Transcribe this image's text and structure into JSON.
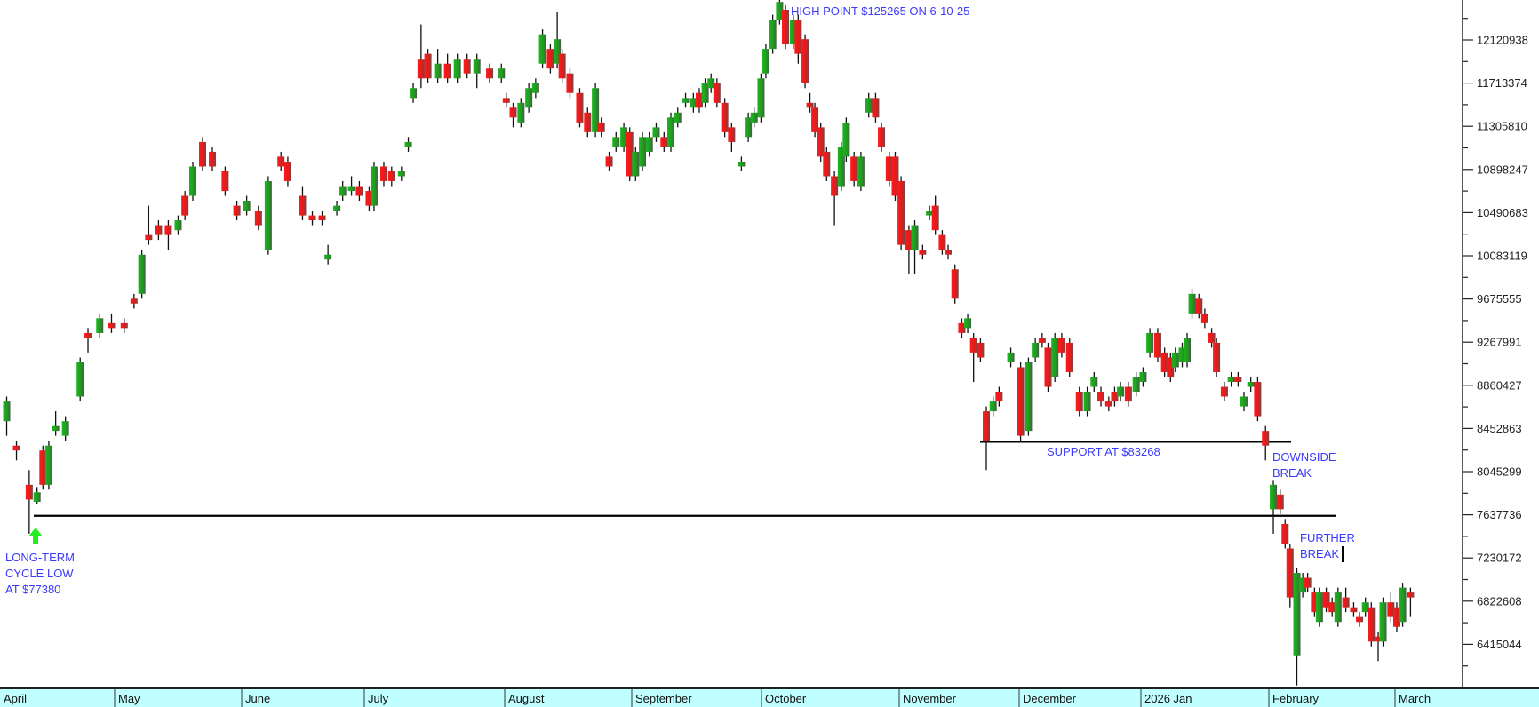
{
  "chart_data": {
    "type": "candlestick",
    "title": "",
    "xlabel": "",
    "ylabel": "",
    "grid": false,
    "x_tick_labels": [
      "April",
      "May",
      "June",
      "July",
      "August",
      "September",
      "October",
      "November",
      "December",
      "2026 Jan",
      "February",
      "March"
    ],
    "y_tick_labels": [
      "12120938",
      "11713374",
      "11305810",
      "10898247",
      "10490683",
      "10083119",
      "9675555",
      "9267991",
      "8860427",
      "8452863",
      "8045299",
      "7637736",
      "7230172",
      "6822608",
      "6415044"
    ],
    "ylim": [
      5900000,
      12560000
    ],
    "colors": {
      "up": "#1faa1f",
      "down": "#ee1c1c",
      "annotation": "#3a3aff",
      "axis_band": "#c0ffff"
    },
    "candle_fields": [
      "open",
      "high",
      "low",
      "close"
    ],
    "candles": [
      [
        8522000,
        8754000,
        8384000,
        8707000
      ],
      [
        8291000,
        8337000,
        8152000,
        8245000
      ],
      [
        7921000,
        8060000,
        7459000,
        7782000
      ],
      [
        7760000,
        7900000,
        7738000,
        7850000
      ],
      [
        8245000,
        8291000,
        7875000,
        7921000
      ],
      [
        7921000,
        8337000,
        7875000,
        8291000
      ],
      [
        8430000,
        8615000,
        8384000,
        8476000
      ],
      [
        8384000,
        8569000,
        8337000,
        8522000
      ],
      [
        8754000,
        9123000,
        8707000,
        9077000
      ],
      [
        9354000,
        9401000,
        9170000,
        9308000
      ],
      [
        9354000,
        9539000,
        9308000,
        9493000
      ],
      [
        9447000,
        9539000,
        9354000,
        9401000
      ],
      [
        9447000,
        9493000,
        9354000,
        9401000
      ],
      [
        9678000,
        9724000,
        9585000,
        9632000
      ],
      [
        9724000,
        10140000,
        9678000,
        10094000
      ],
      [
        10279000,
        10556000,
        10187000,
        10233000
      ],
      [
        10372000,
        10418000,
        10233000,
        10279000
      ],
      [
        10372000,
        10418000,
        10140000,
        10279000
      ],
      [
        10325000,
        10464000,
        10279000,
        10418000
      ],
      [
        10649000,
        10695000,
        10418000,
        10464000
      ],
      [
        10649000,
        10972000,
        10603000,
        10926000
      ],
      [
        11157000,
        11204000,
        10880000,
        10926000
      ],
      [
        11065000,
        11111000,
        10880000,
        10926000
      ],
      [
        10880000,
        10926000,
        10649000,
        10695000
      ],
      [
        10556000,
        10603000,
        10418000,
        10464000
      ],
      [
        10510000,
        10649000,
        10464000,
        10603000
      ],
      [
        10510000,
        10556000,
        10325000,
        10372000
      ],
      [
        10140000,
        10834000,
        10094000,
        10788000
      ],
      [
        11019000,
        11065000,
        10880000,
        10926000
      ],
      [
        10972000,
        11019000,
        10741000,
        10788000
      ],
      [
        10649000,
        10741000,
        10418000,
        10464000
      ],
      [
        10464000,
        10510000,
        10372000,
        10418000
      ],
      [
        10464000,
        10510000,
        10372000,
        10418000
      ],
      [
        10048000,
        10187000,
        10002000,
        10094000
      ],
      [
        10510000,
        10603000,
        10464000,
        10556000
      ],
      [
        10649000,
        10788000,
        10603000,
        10741000
      ],
      [
        10695000,
        10834000,
        10649000,
        10741000
      ],
      [
        10741000,
        10788000,
        10603000,
        10649000
      ],
      [
        10695000,
        10741000,
        10510000,
        10556000
      ],
      [
        10556000,
        10972000,
        10510000,
        10926000
      ],
      [
        10926000,
        10972000,
        10741000,
        10788000
      ],
      [
        10880000,
        10926000,
        10741000,
        10788000
      ],
      [
        10834000,
        10926000,
        10788000,
        10880000
      ],
      [
        11111000,
        11204000,
        11065000,
        11157000
      ],
      [
        11573000,
        11712000,
        11527000,
        11666000
      ],
      [
        11943000,
        12267000,
        11666000,
        11758000
      ],
      [
        11990000,
        12036000,
        11712000,
        11758000
      ],
      [
        11758000,
        12036000,
        11712000,
        11897000
      ],
      [
        11897000,
        11990000,
        11712000,
        11758000
      ],
      [
        11758000,
        11990000,
        11712000,
        11943000
      ],
      [
        11943000,
        11990000,
        11758000,
        11805000
      ],
      [
        11805000,
        11990000,
        11666000,
        11943000
      ],
      [
        11851000,
        11897000,
        11712000,
        11758000
      ],
      [
        11758000,
        11897000,
        11712000,
        11851000
      ],
      [
        11573000,
        11620000,
        11481000,
        11527000
      ],
      [
        11481000,
        11527000,
        11296000,
        11389000
      ],
      [
        11342000,
        11573000,
        11296000,
        11527000
      ],
      [
        11481000,
        11712000,
        11435000,
        11666000
      ],
      [
        11620000,
        11758000,
        11573000,
        11712000
      ],
      [
        11897000,
        12221000,
        11851000,
        12174000
      ],
      [
        12036000,
        12082000,
        11805000,
        11851000
      ],
      [
        11897000,
        12387000,
        11851000,
        12128000
      ],
      [
        11990000,
        12036000,
        11712000,
        11758000
      ],
      [
        11805000,
        11851000,
        11573000,
        11620000
      ],
      [
        11620000,
        11666000,
        11296000,
        11342000
      ],
      [
        11435000,
        11481000,
        11204000,
        11250000
      ],
      [
        11250000,
        11712000,
        11204000,
        11666000
      ],
      [
        11342000,
        11389000,
        11204000,
        11250000
      ],
      [
        11019000,
        11065000,
        10880000,
        10926000
      ],
      [
        11111000,
        11250000,
        11065000,
        11204000
      ],
      [
        11111000,
        11342000,
        11065000,
        11296000
      ],
      [
        11250000,
        11296000,
        10788000,
        10834000
      ],
      [
        10834000,
        11111000,
        10788000,
        11065000
      ],
      [
        10926000,
        11250000,
        10880000,
        11204000
      ],
      [
        11065000,
        11250000,
        11019000,
        11204000
      ],
      [
        11204000,
        11342000,
        11157000,
        11296000
      ],
      [
        11204000,
        11250000,
        11065000,
        11111000
      ],
      [
        11111000,
        11435000,
        11065000,
        11389000
      ],
      [
        11342000,
        11481000,
        11296000,
        11435000
      ],
      [
        11527000,
        11620000,
        11481000,
        11573000
      ],
      [
        11481000,
        11620000,
        11435000,
        11573000
      ],
      [
        11620000,
        11666000,
        11435000,
        11481000
      ],
      [
        11527000,
        11758000,
        11481000,
        11712000
      ],
      [
        11666000,
        11805000,
        11620000,
        11758000
      ],
      [
        11712000,
        11758000,
        11481000,
        11527000
      ],
      [
        11527000,
        11573000,
        11204000,
        11250000
      ],
      [
        11296000,
        11342000,
        11065000,
        11157000
      ],
      [
        10926000,
        11019000,
        10880000,
        10972000
      ],
      [
        11204000,
        11435000,
        11157000,
        11389000
      ],
      [
        11342000,
        11481000,
        11296000,
        11435000
      ],
      [
        11389000,
        11805000,
        11342000,
        11758000
      ],
      [
        11805000,
        12082000,
        11758000,
        12036000
      ],
      [
        12036000,
        12359000,
        11990000,
        12313000
      ],
      [
        12313000,
        12526500,
        12267000,
        12480000
      ],
      [
        12406000,
        12450000,
        12036000,
        12082000
      ],
      [
        12082000,
        12359000,
        12036000,
        12313000
      ],
      [
        12313000,
        12359000,
        11897000,
        11990000
      ],
      [
        12128000,
        12174000,
        11666000,
        11712000
      ],
      [
        11527000,
        11620000,
        11435000,
        11481000
      ],
      [
        11481000,
        11527000,
        11204000,
        11250000
      ],
      [
        11296000,
        11342000,
        10972000,
        11019000
      ],
      [
        11065000,
        11111000,
        10788000,
        10834000
      ],
      [
        10834000,
        10880000,
        10372000,
        10649000
      ],
      [
        10741000,
        11157000,
        10695000,
        11111000
      ],
      [
        11019000,
        11389000,
        10972000,
        11342000
      ],
      [
        11019000,
        11065000,
        10741000,
        10788000
      ],
      [
        10741000,
        11065000,
        10695000,
        11019000
      ],
      [
        11435000,
        11620000,
        11389000,
        11573000
      ],
      [
        11573000,
        11620000,
        11342000,
        11389000
      ],
      [
        11296000,
        11342000,
        11065000,
        11111000
      ],
      [
        11019000,
        11065000,
        10741000,
        10788000
      ],
      [
        11019000,
        11065000,
        10603000,
        10649000
      ],
      [
        10788000,
        10834000,
        10140000,
        10187000
      ],
      [
        10325000,
        10372000,
        9909000,
        10140000
      ],
      [
        10140000,
        10418000,
        9909000,
        10372000
      ],
      [
        10140000,
        10187000,
        10048000,
        10094000
      ],
      [
        10464000,
        10556000,
        10418000,
        10510000
      ],
      [
        10556000,
        10649000,
        10279000,
        10325000
      ],
      [
        10279000,
        10325000,
        10094000,
        10140000
      ],
      [
        10140000,
        10187000,
        10048000,
        10094000
      ],
      [
        9955000,
        10002000,
        9632000,
        9678000
      ],
      [
        9447000,
        9493000,
        9308000,
        9354000
      ],
      [
        9401000,
        9539000,
        9354000,
        9493000
      ],
      [
        9308000,
        9354000,
        8892000,
        9170000
      ],
      [
        9262000,
        9308000,
        9077000,
        9123000
      ],
      [
        8615000,
        8661000,
        8060000,
        8337000
      ],
      [
        8615000,
        8754000,
        8569000,
        8707000
      ],
      [
        8800000,
        8846000,
        8661000,
        8707000
      ],
      [
        9077000,
        9216000,
        9031000,
        9170000
      ],
      [
        9031000,
        9077000,
        8337000,
        8384000
      ],
      [
        8430000,
        9123000,
        8384000,
        9077000
      ],
      [
        9123000,
        9308000,
        9077000,
        9262000
      ],
      [
        9308000,
        9354000,
        9216000,
        9262000
      ],
      [
        9216000,
        9262000,
        8800000,
        8846000
      ],
      [
        8938000,
        9354000,
        8892000,
        9308000
      ],
      [
        9308000,
        9354000,
        9123000,
        9170000
      ],
      [
        9262000,
        9308000,
        8938000,
        8985000
      ],
      [
        8800000,
        8846000,
        8569000,
        8615000
      ],
      [
        8615000,
        8846000,
        8569000,
        8800000
      ],
      [
        8846000,
        8985000,
        8800000,
        8938000
      ],
      [
        8800000,
        8846000,
        8661000,
        8707000
      ],
      [
        8707000,
        8754000,
        8615000,
        8661000
      ],
      [
        8800000,
        8846000,
        8661000,
        8707000
      ],
      [
        8754000,
        8892000,
        8707000,
        8846000
      ],
      [
        8846000,
        8892000,
        8661000,
        8707000
      ],
      [
        8800000,
        8985000,
        8754000,
        8938000
      ],
      [
        8892000,
        9031000,
        8846000,
        8985000
      ],
      [
        9170000,
        9401000,
        9123000,
        9354000
      ],
      [
        9354000,
        9401000,
        9077000,
        9123000
      ],
      [
        9170000,
        9216000,
        8938000,
        8985000
      ],
      [
        9123000,
        9170000,
        8892000,
        8938000
      ],
      [
        9031000,
        9216000,
        8985000,
        9170000
      ],
      [
        9077000,
        9262000,
        9031000,
        9216000
      ],
      [
        9077000,
        9354000,
        9031000,
        9308000
      ],
      [
        9539000,
        9770000,
        9493000,
        9724000
      ],
      [
        9678000,
        9724000,
        9493000,
        9539000
      ],
      [
        9539000,
        9585000,
        9401000,
        9447000
      ],
      [
        9354000,
        9401000,
        9216000,
        9262000
      ],
      [
        9262000,
        9308000,
        8938000,
        8985000
      ],
      [
        8846000,
        8892000,
        8707000,
        8754000
      ],
      [
        8892000,
        8985000,
        8846000,
        8938000
      ],
      [
        8938000,
        8985000,
        8846000,
        8892000
      ],
      [
        8661000,
        8800000,
        8615000,
        8754000
      ],
      [
        8846000,
        8938000,
        8800000,
        8892000
      ],
      [
        8892000,
        8938000,
        8522000,
        8569000
      ],
      [
        8430000,
        8476000,
        8152000,
        8291000
      ],
      [
        7690000,
        7967000,
        7459000,
        7921000
      ],
      [
        7829000,
        7875000,
        7644000,
        7690000
      ],
      [
        7551000,
        7598000,
        7320000,
        7366000
      ],
      [
        7320000,
        7366000,
        6765000,
        6858000
      ],
      [
        6303000,
        7135000,
        6026000,
        7089000
      ],
      [
        6904000,
        7089000,
        6858000,
        7043000
      ],
      [
        7043000,
        7089000,
        6904000,
        6950000
      ],
      [
        6904000,
        6950000,
        6673000,
        6719000
      ],
      [
        6626000,
        6950000,
        6580000,
        6904000
      ],
      [
        6904000,
        6950000,
        6719000,
        6765000
      ],
      [
        6811000,
        6858000,
        6673000,
        6719000
      ],
      [
        6626000,
        6950000,
        6580000,
        6904000
      ],
      [
        6858000,
        6950000,
        6719000,
        6765000
      ],
      [
        6765000,
        6811000,
        6673000,
        6719000
      ],
      [
        6673000,
        6719000,
        6580000,
        6626000
      ],
      [
        6719000,
        6858000,
        6673000,
        6811000
      ],
      [
        6765000,
        6811000,
        6396000,
        6441000
      ],
      [
        6488000,
        6534000,
        6257000,
        6441000
      ],
      [
        6441000,
        6858000,
        6396000,
        6811000
      ],
      [
        6811000,
        6904000,
        6626000,
        6673000
      ],
      [
        6765000,
        6811000,
        6534000,
        6580000
      ],
      [
        6626000,
        6996000,
        6580000,
        6950000
      ],
      [
        6904000,
        6950000,
        6673000,
        6858000
      ]
    ],
    "horizontal_lines": [
      {
        "value": 7628000
      },
      {
        "value": 8326800
      }
    ],
    "annotations": {
      "high_point": "HIGH POINT $125265 ON 6-10-25",
      "cycle_low": [
        "LONG-TERM",
        "CYCLE LOW",
        "AT $77380"
      ],
      "support": "SUPPORT AT $83268",
      "downside_break": [
        "DOWNSIDE",
        "BREAK"
      ],
      "further_break": [
        "FURTHER",
        "BREAK"
      ]
    }
  }
}
